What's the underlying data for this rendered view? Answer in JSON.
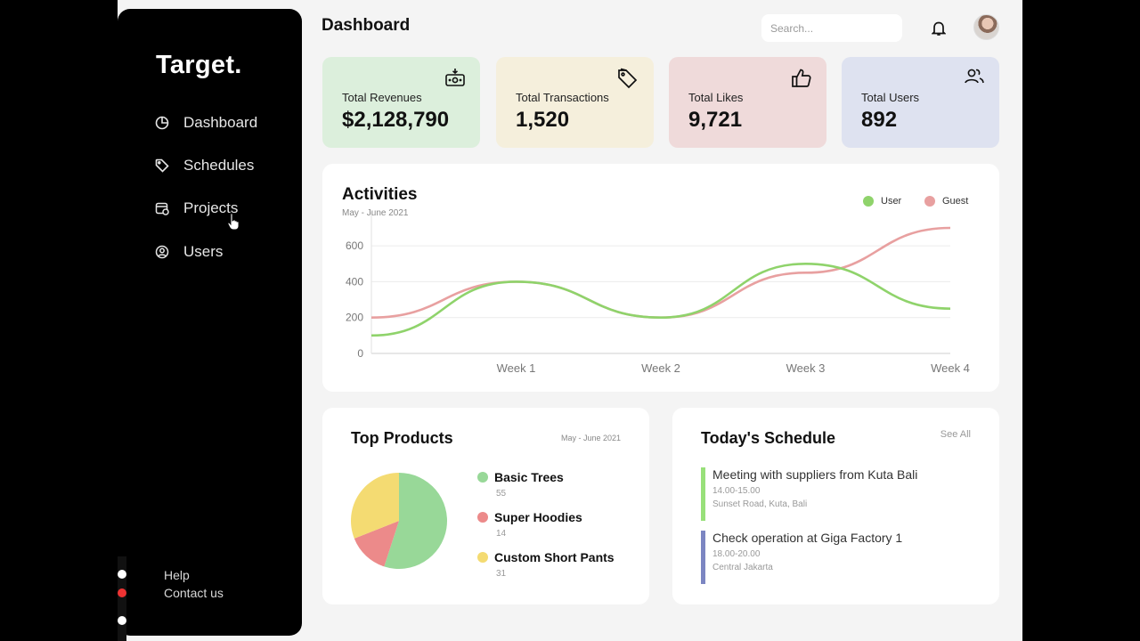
{
  "app": {
    "logo": "Target."
  },
  "sidebar": {
    "items": [
      {
        "label": "Dashboard",
        "icon": "pie-chart-icon"
      },
      {
        "label": "Schedules",
        "icon": "tag-icon"
      },
      {
        "label": "Projects",
        "icon": "calendar-icon"
      },
      {
        "label": "Users",
        "icon": "user-circle-icon"
      }
    ],
    "footer": {
      "help": "Help",
      "contact": "Contact us"
    }
  },
  "header": {
    "title": "Dashboard",
    "search_placeholder": "Search..."
  },
  "stats": [
    {
      "label": "Total Revenues",
      "value": "$2,128,790",
      "color": "#dcefdc",
      "icon": "money-icon"
    },
    {
      "label": "Total Transactions",
      "value": "1,520",
      "color": "#f5efdc",
      "icon": "tag-icon"
    },
    {
      "label": "Total Likes",
      "value": "9,721",
      "color": "#efdada",
      "icon": "thumbs-up-icon"
    },
    {
      "label": "Total Users",
      "value": "892",
      "color": "#dee2f0",
      "icon": "users-icon"
    }
  ],
  "activities": {
    "title": "Activities",
    "subtitle": "May - June 2021",
    "legend": [
      {
        "name": "User",
        "color": "#8fd36b"
      },
      {
        "name": "Guest",
        "color": "#e8a0a0"
      }
    ]
  },
  "chart_data": {
    "type": "line",
    "x": [
      "",
      "Week 1",
      "Week 2",
      "Week 3",
      "Week 4"
    ],
    "series": [
      {
        "name": "User",
        "values": [
          100,
          400,
          200,
          500,
          250
        ],
        "color": "#8fd36b"
      },
      {
        "name": "Guest",
        "values": [
          200,
          400,
          200,
          450,
          700
        ],
        "color": "#e8a0a0"
      }
    ],
    "yticks": [
      "0",
      "200",
      "400",
      "600"
    ],
    "ylim": [
      0,
      700
    ],
    "legend": "top-right",
    "grid": true
  },
  "top_products": {
    "title": "Top Products",
    "date": "May - June 2021",
    "items": [
      {
        "name": "Basic Trees",
        "count": "55",
        "value": 55,
        "color": "#98d898"
      },
      {
        "name": "Super Hoodies",
        "count": "14",
        "value": 14,
        "color": "#ec8a8a"
      },
      {
        "name": "Custom Short Pants",
        "count": "31",
        "value": 31,
        "color": "#f4db72"
      }
    ]
  },
  "schedule": {
    "title": "Today's Schedule",
    "see_all": "See All",
    "items": [
      {
        "title": "Meeting with suppliers from Kuta Bali",
        "time": "14.00-15.00",
        "place": "Sunset Road, Kuta, Bali",
        "color": "#98e07a"
      },
      {
        "title": "Check operation at Giga Factory 1",
        "time": "18.00-20.00",
        "place": "Central Jakarta",
        "color": "#7c86c2"
      }
    ]
  }
}
